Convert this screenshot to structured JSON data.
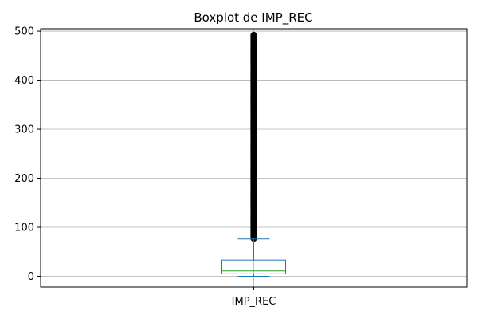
{
  "chart_data": {
    "type": "boxplot",
    "title": "Boxplot de IMP_REC",
    "categories": [
      "IMP_REC"
    ],
    "xlabel": "",
    "ylabel": "",
    "ylim": [
      -22,
      505
    ],
    "yticks": [
      0,
      100,
      200,
      300,
      400,
      500
    ],
    "grid": true,
    "series": [
      {
        "category": "IMP_REC",
        "whisker_low": 0,
        "q1": 5,
        "median": 11,
        "q3": 33,
        "whisker_high": 76,
        "outlier_min": 77,
        "outlier_max": 492
      }
    ],
    "colors": {
      "box": "#1f77b4",
      "median": "#2ca02c",
      "flier": "#000000",
      "grid": "#b0b0b0"
    }
  }
}
